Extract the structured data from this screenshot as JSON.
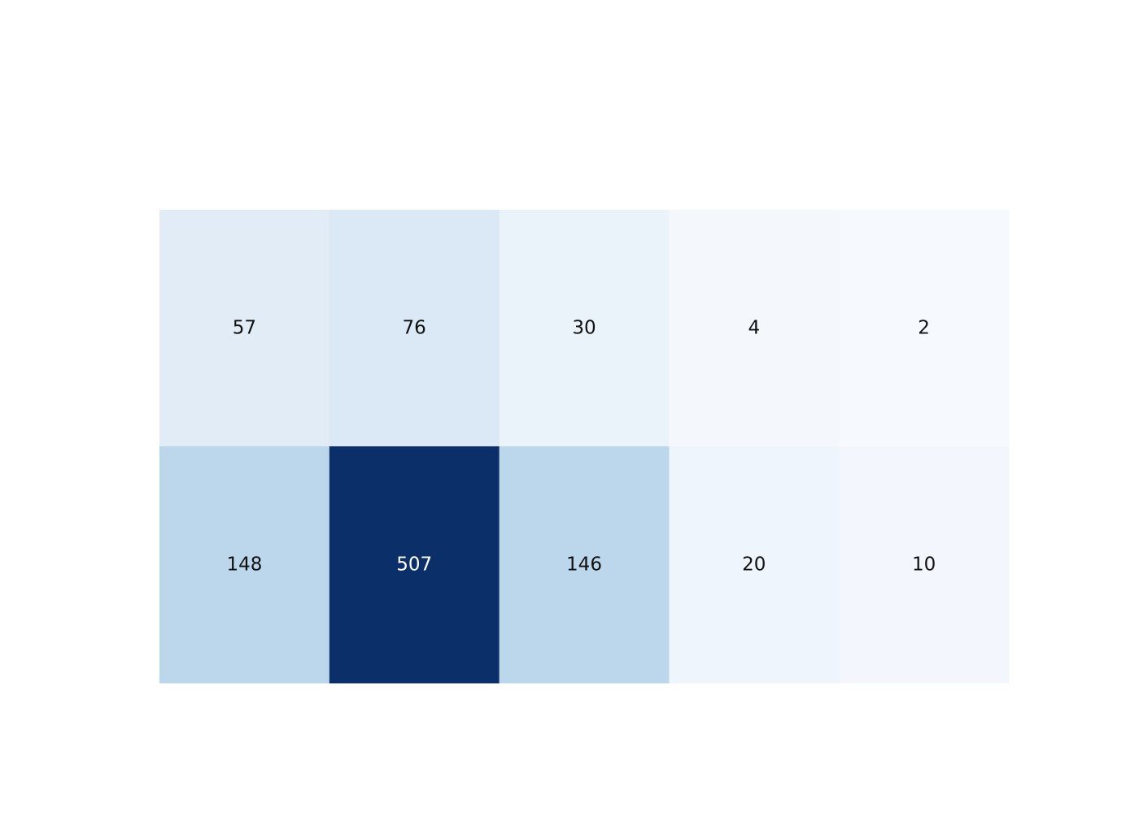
{
  "chart_data": {
    "type": "heatmap",
    "rows": 2,
    "cols": 5,
    "values": [
      [
        57,
        76,
        30,
        4,
        2
      ],
      [
        148,
        507,
        146,
        20,
        10
      ]
    ],
    "colors": [
      [
        "#e1ecf7",
        "#dbe8f5",
        "#eaf2fa",
        "#f4f8fd",
        "#f6f9fe"
      ],
      [
        "#bcd7eb",
        "#0a2f69",
        "#bcd7eb",
        "#eef5fc",
        "#f3f7fd"
      ]
    ],
    "text_colors": [
      [
        "#111111",
        "#111111",
        "#111111",
        "#111111",
        "#111111"
      ],
      [
        "#111111",
        "#ffffff",
        "#111111",
        "#111111",
        "#111111"
      ]
    ],
    "colorscale": "Blues",
    "title": "",
    "xlabel": "",
    "ylabel": ""
  }
}
